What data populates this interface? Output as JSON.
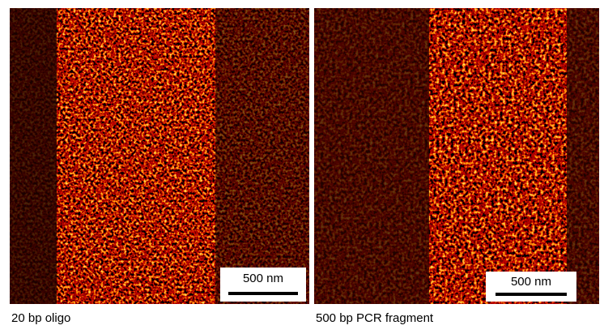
{
  "panels": [
    {
      "caption": "20 bp oligo",
      "scale_bar": "500 nm"
    },
    {
      "caption": "500 bp PCR fragment",
      "scale_bar": "500 nm"
    }
  ]
}
